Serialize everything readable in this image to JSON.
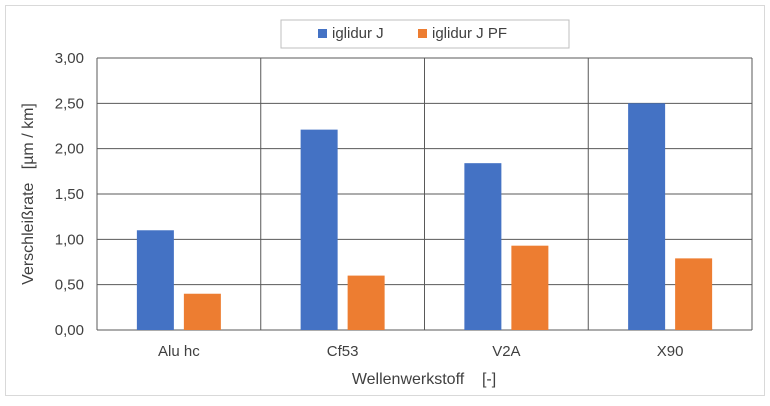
{
  "chart_data": {
    "type": "bar",
    "categories": [
      "Alu hc",
      "Cf53",
      "V2A",
      "X90"
    ],
    "series": [
      {
        "name": "iglidur J",
        "values": [
          1.1,
          2.21,
          1.84,
          2.5
        ],
        "color": "#4472C4"
      },
      {
        "name": "iglidur J PF",
        "values": [
          0.4,
          0.6,
          0.93,
          0.79
        ],
        "color": "#ED7D31"
      }
    ],
    "xlabel": "Wellenwerkstoff    [-]",
    "ylabel": "Verschleißrate   [µm / km]",
    "ylim": [
      0,
      3
    ],
    "yticks": [
      "0,00",
      "0,50",
      "1,00",
      "1,50",
      "2,00",
      "2,50",
      "3,00"
    ],
    "ytick_values": [
      0,
      0.5,
      1,
      1.5,
      2,
      2.5,
      3
    ],
    "grid": true,
    "legend_position": "top"
  }
}
